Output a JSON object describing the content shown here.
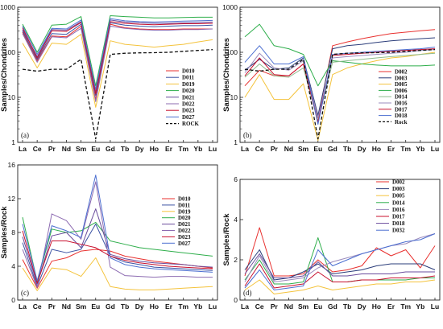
{
  "chart_data": [
    {
      "panel": "(a)",
      "type": "line",
      "yscale": "log",
      "ylim": [
        1,
        1000
      ],
      "yticks": [
        1,
        10,
        100,
        1000
      ],
      "ylabel": "Samples/Chondrites",
      "categories": [
        "La",
        "Ce",
        "Pr",
        "Nd",
        "Sm",
        "Eu",
        "Gd",
        "Tb",
        "Dy",
        "Ho",
        "Er",
        "Tm",
        "Yb",
        "Lu"
      ],
      "series": [
        {
          "name": "D010",
          "color": "#e8312f",
          "dash": false,
          "values": [
            280,
            65,
            230,
            220,
            380,
            9,
            420,
            350,
            330,
            320,
            320,
            330,
            330,
            330
          ]
        },
        {
          "name": "D011",
          "color": "#3b52a3",
          "dash": false,
          "values": [
            300,
            70,
            260,
            250,
            420,
            11,
            450,
            400,
            380,
            370,
            380,
            390,
            390,
            400
          ]
        },
        {
          "name": "D019",
          "color": "#f4c33c",
          "dash": false,
          "values": [
            160,
            45,
            160,
            150,
            250,
            6,
            180,
            150,
            140,
            130,
            140,
            150,
            170,
            190
          ]
        },
        {
          "name": "D020",
          "color": "#2eae4b",
          "dash": false,
          "values": [
            420,
            100,
            400,
            420,
            620,
            18,
            650,
            620,
            600,
            580,
            580,
            590,
            600,
            600
          ]
        },
        {
          "name": "D021",
          "color": "#6a4c9c",
          "dash": false,
          "values": [
            320,
            80,
            320,
            310,
            480,
            13,
            520,
            470,
            450,
            440,
            440,
            450,
            460,
            470
          ]
        },
        {
          "name": "D022",
          "color": "#8c6bb1",
          "dash": false,
          "values": [
            260,
            60,
            220,
            210,
            340,
            8,
            380,
            340,
            320,
            310,
            310,
            320,
            320,
            330
          ]
        },
        {
          "name": "D023",
          "color": "#c8102e",
          "dash": false,
          "values": [
            350,
            75,
            300,
            290,
            460,
            12,
            480,
            440,
            420,
            410,
            420,
            430,
            430,
            440
          ]
        },
        {
          "name": "D027",
          "color": "#4c6fd1",
          "dash": false,
          "values": [
            380,
            90,
            340,
            330,
            520,
            15,
            560,
            500,
            480,
            470,
            480,
            490,
            500,
            510
          ]
        },
        {
          "name": "ROCK",
          "color": "#111111",
          "dash": true,
          "values": [
            42,
            38,
            42,
            42,
            70,
            1.2,
            90,
            95,
            97,
            98,
            100,
            105,
            110,
            115
          ]
        }
      ]
    },
    {
      "panel": "(b)",
      "type": "line",
      "yscale": "log",
      "ylim": [
        1,
        1000
      ],
      "yticks": [
        1,
        10,
        100,
        1000
      ],
      "ylabel": "Samples/Chondrites",
      "categories": [
        "La",
        "Ce",
        "Pr",
        "Nd",
        "Sm",
        "Eu",
        "Gd",
        "Tb",
        "Dy",
        "Ho",
        "Er",
        "Tm",
        "Yb",
        "Lu"
      ],
      "series": [
        {
          "name": "D002",
          "color": "#e8312f",
          "dash": false,
          "values": [
            18,
            40,
            30,
            30,
            55,
            3.5,
            140,
            170,
            200,
            230,
            260,
            280,
            300,
            320
          ]
        },
        {
          "name": "D003",
          "color": "#2b3d7a",
          "dash": false,
          "values": [
            40,
            70,
            42,
            45,
            75,
            4,
            120,
            140,
            150,
            165,
            180,
            190,
            200,
            210
          ]
        },
        {
          "name": "D005",
          "color": "#f4c33c",
          "dash": false,
          "values": [
            10,
            32,
            9,
            9,
            20,
            1.1,
            32,
            45,
            55,
            65,
            75,
            80,
            90,
            100
          ]
        },
        {
          "name": "D006",
          "color": "#2eae4b",
          "dash": false,
          "values": [
            220,
            420,
            140,
            120,
            90,
            18,
            65,
            60,
            55,
            52,
            50,
            50,
            50,
            52
          ]
        },
        {
          "name": "D014",
          "color": "#8fbc8f",
          "dash": false,
          "values": [
            28,
            55,
            30,
            28,
            45,
            3,
            60,
            65,
            70,
            75,
            80,
            85,
            90,
            95
          ]
        },
        {
          "name": "D016",
          "color": "#9b8bbd",
          "dash": false,
          "values": [
            35,
            95,
            45,
            40,
            65,
            3.5,
            75,
            80,
            85,
            90,
            95,
            100,
            110,
            115
          ]
        },
        {
          "name": "D017",
          "color": "#c8102e",
          "dash": false,
          "values": [
            30,
            75,
            32,
            30,
            55,
            2.8,
            85,
            90,
            95,
            100,
            105,
            110,
            115,
            120
          ]
        },
        {
          "name": "D018",
          "color": "#4c6fd1",
          "dash": false,
          "values": [
            60,
            140,
            55,
            55,
            80,
            2.5,
            90,
            95,
            100,
            105,
            110,
            115,
            120,
            130
          ]
        },
        {
          "name": "Rock",
          "color": "#111111",
          "dash": true,
          "values": [
            42,
            38,
            42,
            42,
            70,
            1.2,
            90,
            95,
            97,
            98,
            100,
            105,
            110,
            115
          ]
        }
      ]
    },
    {
      "panel": "(c)",
      "type": "line",
      "yscale": "linear",
      "ylim": [
        0,
        16
      ],
      "yticks": [
        0,
        4,
        8,
        12,
        16
      ],
      "ylabel": "Samples/Rock",
      "categories": [
        "La",
        "Ce",
        "Pr",
        "Nd",
        "Sm",
        "Eu",
        "Gd",
        "Tb",
        "Dy",
        "Ho",
        "Er",
        "Tm",
        "Yb",
        "Lu"
      ],
      "series": [
        {
          "name": "D010",
          "color": "#e8312f",
          "dash": false,
          "values": [
            4.8,
            1.4,
            4.6,
            5.0,
            5.8,
            6.0,
            5.8,
            5.2,
            4.9,
            4.6,
            4.4,
            4.2,
            4.0,
            3.8
          ]
        },
        {
          "name": "D011",
          "color": "#3b52a3",
          "dash": false,
          "values": [
            6.8,
            1.6,
            6.0,
            5.6,
            6.0,
            9.0,
            5.2,
            4.5,
            4.2,
            3.9,
            3.8,
            3.7,
            3.6,
            3.5
          ]
        },
        {
          "name": "D019",
          "color": "#f4c33c",
          "dash": false,
          "values": [
            3.8,
            1.1,
            3.8,
            3.6,
            2.8,
            5.0,
            1.6,
            1.3,
            1.2,
            1.2,
            1.3,
            1.4,
            1.5,
            1.6
          ]
        },
        {
          "name": "D020",
          "color": "#2eae4b",
          "dash": false,
          "values": [
            9.8,
            2.2,
            8.4,
            8.0,
            8.2,
            9.2,
            7.0,
            6.6,
            6.2,
            6.0,
            5.8,
            5.6,
            5.4,
            5.2
          ]
        },
        {
          "name": "D021",
          "color": "#6a4c9c",
          "dash": false,
          "values": [
            7.5,
            1.9,
            7.6,
            8.0,
            6.2,
            10.8,
            5.4,
            4.9,
            4.6,
            4.4,
            4.3,
            4.2,
            4.0,
            3.9
          ]
        },
        {
          "name": "D022",
          "color": "#8c6bb1",
          "dash": false,
          "values": [
            6.0,
            1.5,
            10.2,
            9.4,
            7.2,
            14.0,
            3.9,
            2.9,
            2.8,
            2.7,
            2.8,
            2.8,
            2.7,
            2.7
          ]
        },
        {
          "name": "D023",
          "color": "#c8102e",
          "dash": false,
          "values": [
            8.2,
            2.0,
            7.0,
            7.0,
            6.6,
            6.2,
            5.2,
            4.7,
            4.4,
            4.2,
            4.0,
            3.9,
            3.8,
            3.7
          ]
        },
        {
          "name": "D027",
          "color": "#4c6fd1",
          "dash": false,
          "values": [
            9.0,
            2.3,
            8.8,
            8.2,
            7.4,
            14.8,
            5.0,
            4.2,
            3.9,
            3.7,
            3.6,
            3.5,
            3.4,
            3.3
          ]
        }
      ]
    },
    {
      "panel": "(d)",
      "type": "line",
      "yscale": "linear",
      "ylim": [
        0,
        6
      ],
      "yticks": [
        0,
        2,
        4,
        6
      ],
      "ylabel": "Samples/Rock",
      "categories": [
        "La",
        "Ce",
        "Pr",
        "Nd",
        "Sm",
        "Eu",
        "Gd",
        "Tb",
        "Dy",
        "Ho",
        "Er",
        "Tm",
        "Yb",
        "Lu"
      ],
      "series": [
        {
          "name": "D002",
          "color": "#e8312f",
          "dash": false,
          "values": [
            1.2,
            3.6,
            1.2,
            1.2,
            1.3,
            2.0,
            1.4,
            1.5,
            1.7,
            2.6,
            2.2,
            2.5,
            1.6,
            2.7
          ]
        },
        {
          "name": "D003",
          "color": "#2b3d7a",
          "dash": false,
          "values": [
            1.5,
            2.5,
            1.0,
            1.1,
            1.4,
            1.8,
            1.3,
            1.4,
            1.5,
            1.7,
            1.8,
            1.8,
            1.8,
            1.5
          ]
        },
        {
          "name": "D005",
          "color": "#f4c33c",
          "dash": false,
          "values": [
            0.5,
            1.0,
            0.3,
            0.4,
            0.5,
            0.7,
            0.5,
            0.6,
            0.7,
            0.8,
            0.8,
            0.9,
            0.9,
            1.0
          ]
        },
        {
          "name": "D014",
          "color": "#2eae4b",
          "dash": false,
          "values": [
            1.0,
            2.0,
            0.8,
            0.8,
            0.9,
            3.1,
            0.9,
            0.9,
            1.0,
            1.0,
            1.0,
            1.0,
            1.1,
            1.1
          ]
        },
        {
          "name": "D016",
          "color": "#9b8bbd",
          "dash": false,
          "values": [
            0.9,
            2.2,
            0.9,
            1.0,
            1.1,
            1.6,
            1.9,
            2.1,
            2.3,
            2.5,
            2.7,
            2.8,
            3.1,
            3.3
          ]
        },
        {
          "name": "D017",
          "color": "#c8102e",
          "dash": false,
          "values": [
            0.7,
            1.8,
            0.6,
            0.7,
            0.8,
            1.4,
            0.9,
            0.9,
            1.0,
            1.0,
            1.1,
            1.1,
            1.1,
            1.2
          ]
        },
        {
          "name": "D018",
          "color": "#6a4c9c",
          "dash": false,
          "values": [
            1.3,
            2.3,
            1.1,
            1.1,
            1.2,
            1.9,
            1.2,
            1.2,
            1.3,
            1.3,
            1.3,
            1.4,
            1.4,
            1.4
          ]
        },
        {
          "name": "D032",
          "color": "#4c6fd1",
          "dash": false,
          "values": [
            0.6,
            1.5,
            0.5,
            0.6,
            0.7,
            2.5,
            1.7,
            2.0,
            2.3,
            2.5,
            2.7,
            2.9,
            3.0,
            3.3
          ]
        }
      ]
    }
  ]
}
